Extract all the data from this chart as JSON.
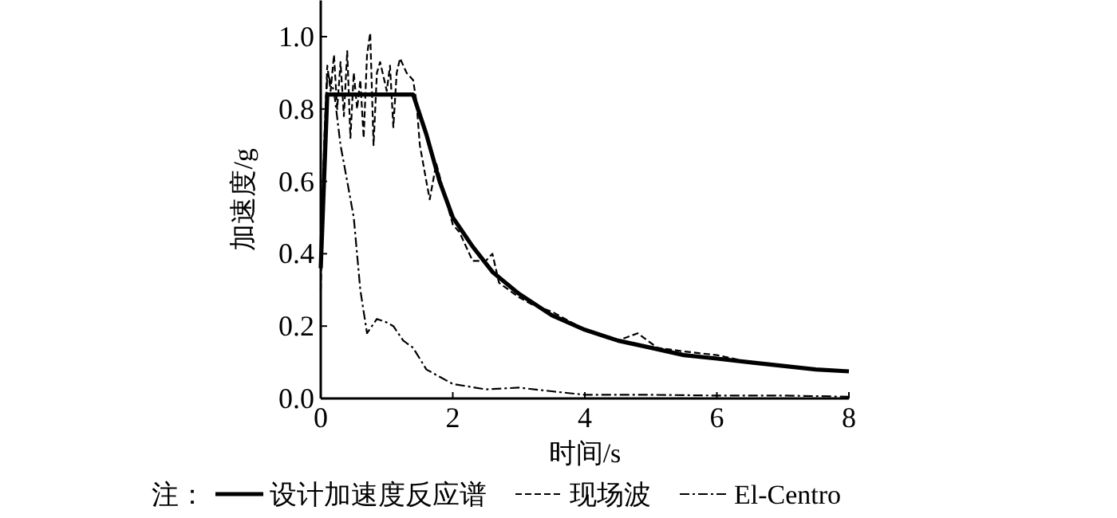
{
  "chart_data": {
    "type": "line",
    "xlabel": "时间/s",
    "ylabel": "加速度/g",
    "legend_title": "注：",
    "legend": "bottom",
    "grid": false,
    "xlim": [
      0,
      8
    ],
    "ylim": [
      0,
      1.1
    ],
    "xticks": [
      0,
      2,
      4,
      6,
      8
    ],
    "yticks": [
      {
        "value": 0,
        "label": "0.0"
      },
      0.2,
      0.4,
      0.6,
      0.8,
      {
        "value": 1,
        "label": "1.0"
      }
    ],
    "series": [
      {
        "name": "设计加速度反应谱",
        "color": "#000000",
        "line_style": "solid",
        "x": [
          0,
          0.1,
          1.4,
          1.6,
          1.8,
          2.0,
          2.3,
          2.6,
          3.0,
          3.5,
          4.0,
          4.5,
          5.0,
          5.5,
          6.0,
          6.5,
          7.0,
          7.5,
          8.0
        ],
        "values": [
          0.36,
          0.84,
          0.84,
          0.73,
          0.6,
          0.5,
          0.42,
          0.35,
          0.29,
          0.23,
          0.19,
          0.16,
          0.14,
          0.12,
          0.11,
          0.1,
          0.09,
          0.08,
          0.075
        ]
      },
      {
        "name": "现场波",
        "color": "#000000",
        "line_style": "dashed",
        "x": [
          0,
          0.05,
          0.1,
          0.15,
          0.2,
          0.25,
          0.3,
          0.35,
          0.4,
          0.45,
          0.5,
          0.55,
          0.6,
          0.65,
          0.7,
          0.75,
          0.8,
          0.85,
          0.9,
          1.0,
          1.05,
          1.1,
          1.15,
          1.2,
          1.3,
          1.4,
          1.45,
          1.5,
          1.6,
          1.65,
          1.75,
          1.85,
          2.0,
          2.1,
          2.3,
          2.5,
          2.6,
          2.7,
          3.0,
          3.2,
          3.5,
          4.0,
          4.5,
          4.8,
          5.1,
          5.5,
          6.0,
          6.5,
          7.0
        ],
        "values": [
          0.3,
          0.7,
          0.92,
          0.85,
          0.95,
          0.8,
          0.93,
          0.78,
          0.96,
          0.72,
          0.9,
          0.8,
          0.88,
          0.72,
          0.95,
          1.01,
          0.7,
          0.9,
          0.93,
          0.85,
          0.92,
          0.75,
          0.9,
          0.94,
          0.9,
          0.88,
          0.82,
          0.7,
          0.6,
          0.55,
          0.65,
          0.58,
          0.48,
          0.46,
          0.38,
          0.38,
          0.4,
          0.32,
          0.28,
          0.26,
          0.24,
          0.19,
          0.16,
          0.18,
          0.14,
          0.13,
          0.12,
          0.1,
          0.09
        ]
      },
      {
        "name": "El-Centro",
        "color": "#000000",
        "line_style": "dashdot",
        "x": [
          0,
          0.1,
          0.2,
          0.3,
          0.4,
          0.5,
          0.6,
          0.7,
          0.85,
          1.0,
          1.1,
          1.25,
          1.4,
          1.6,
          1.8,
          2.0,
          2.5,
          3.0,
          3.5,
          4.0,
          5.0,
          6.0,
          7.0,
          8.0
        ],
        "values": [
          0.35,
          0.9,
          0.85,
          0.7,
          0.6,
          0.5,
          0.3,
          0.18,
          0.22,
          0.21,
          0.2,
          0.16,
          0.14,
          0.08,
          0.06,
          0.04,
          0.025,
          0.03,
          0.02,
          0.01,
          0.01,
          0.008,
          0.008,
          0.005
        ]
      }
    ]
  }
}
